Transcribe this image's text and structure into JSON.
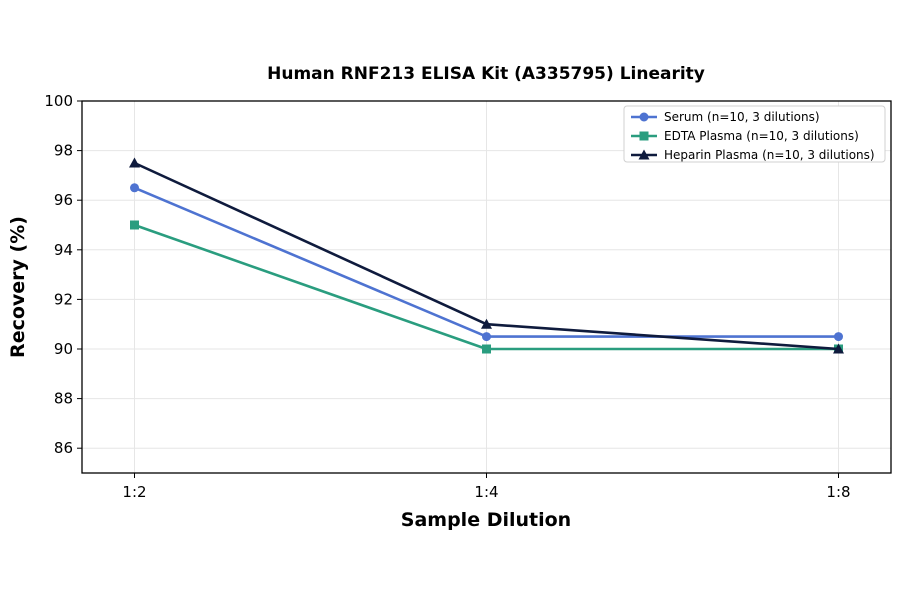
{
  "chart_data": {
    "type": "line",
    "title": "Human RNF213 ELISA Kit (A335795) Linearity",
    "xlabel": "Sample Dilution",
    "ylabel": "Recovery (%)",
    "categories": [
      "1:2",
      "1:4",
      "1:8"
    ],
    "ylim": [
      85,
      100
    ],
    "yticks": [
      86,
      88,
      90,
      92,
      94,
      96,
      98,
      100
    ],
    "grid": true,
    "legend_position": "top-right",
    "series": [
      {
        "name": "Serum (n=10, 3 dilutions)",
        "values": [
          96.5,
          90.5,
          90.5
        ],
        "color": "#4e73d1",
        "marker": "circle"
      },
      {
        "name": "EDTA Plasma (n=10, 3 dilutions)",
        "values": [
          95.0,
          90.0,
          90.0
        ],
        "color": "#2a9d7f",
        "marker": "square"
      },
      {
        "name": "Heparin Plasma (n=10, 3 dilutions)",
        "values": [
          97.5,
          91.0,
          90.0
        ],
        "color": "#0f1b3d",
        "marker": "triangle"
      }
    ]
  }
}
